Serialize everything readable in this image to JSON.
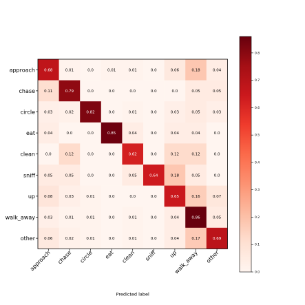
{
  "chart_data": {
    "type": "heatmap",
    "title": "",
    "xlabel": "Predicted label",
    "ylabel": "",
    "x_categories": [
      "approach",
      "chase",
      "circle",
      "eat",
      "clean",
      "sniff",
      "up",
      "walk_away",
      "other"
    ],
    "y_categories": [
      "approach",
      "chase",
      "circle",
      "eat",
      "clean",
      "sniff",
      "up",
      "walk_away",
      "other"
    ],
    "values": [
      [
        0.68,
        0.01,
        0.0,
        0.01,
        0.01,
        0.0,
        0.06,
        0.18,
        0.04
      ],
      [
        0.11,
        0.79,
        0.0,
        0.0,
        0.0,
        0.0,
        0.0,
        0.05,
        0.05
      ],
      [
        0.03,
        0.02,
        0.82,
        0.0,
        0.01,
        0.0,
        0.03,
        0.05,
        0.03
      ],
      [
        0.04,
        0.0,
        0.0,
        0.85,
        0.04,
        0.0,
        0.04,
        0.04,
        0.0
      ],
      [
        0.0,
        0.12,
        0.0,
        0.0,
        0.62,
        0.0,
        0.12,
        0.12,
        0.0
      ],
      [
        0.05,
        0.05,
        0.0,
        0.0,
        0.05,
        0.64,
        0.18,
        0.05,
        0.0
      ],
      [
        0.08,
        0.03,
        0.01,
        0.0,
        0.0,
        0.0,
        0.65,
        0.16,
        0.07
      ],
      [
        0.03,
        0.01,
        0.01,
        0.0,
        0.01,
        0.0,
        0.04,
        0.86,
        0.05
      ],
      [
        0.06,
        0.02,
        0.01,
        0.0,
        0.01,
        0.0,
        0.04,
        0.17,
        0.69
      ]
    ],
    "colormap": "Reds",
    "vmin": 0.0,
    "vmax": 0.86,
    "colorbar_ticks": [
      "0.0",
      "0.1",
      "0.2",
      "0.3",
      "0.4",
      "0.5",
      "0.6",
      "0.7",
      "0.8"
    ],
    "colorbar_tick_values": [
      0.0,
      0.1,
      0.2,
      0.3,
      0.4,
      0.5,
      0.6,
      0.7,
      0.8
    ],
    "grid": false,
    "x_tick_rotation_deg": 45
  }
}
